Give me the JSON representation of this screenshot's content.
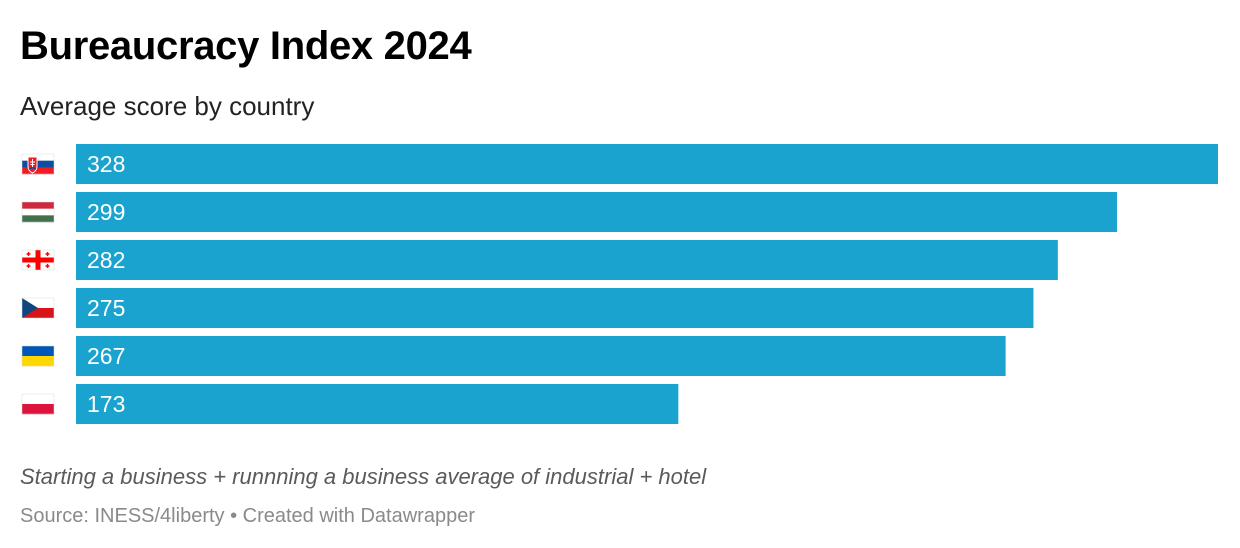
{
  "header": {
    "title": "Bureaucracy Index 2024",
    "subtitle": "Average score by country"
  },
  "footer": {
    "note": "Starting a business + runnning a business average of industrial + hotel",
    "source": "Source: INESS/4liberty • Created with Datawrapper"
  },
  "colors": {
    "bar": "#1aa3cf",
    "bar_label": "#ffffff"
  },
  "chart_data": {
    "type": "bar",
    "orientation": "horizontal",
    "title": "Bureaucracy Index 2024",
    "subtitle": "Average score by country",
    "categories": [
      "slovakia-flag",
      "hungary-flag",
      "georgia-flag",
      "czechia-flag",
      "ukraine-flag",
      "poland-flag"
    ],
    "values": [
      328,
      299,
      282,
      275,
      267,
      173
    ],
    "value_labels": [
      "328",
      "299",
      "282",
      "275",
      "267",
      "173"
    ],
    "xlim": [
      0,
      328
    ],
    "grid": false,
    "legend": "none"
  }
}
